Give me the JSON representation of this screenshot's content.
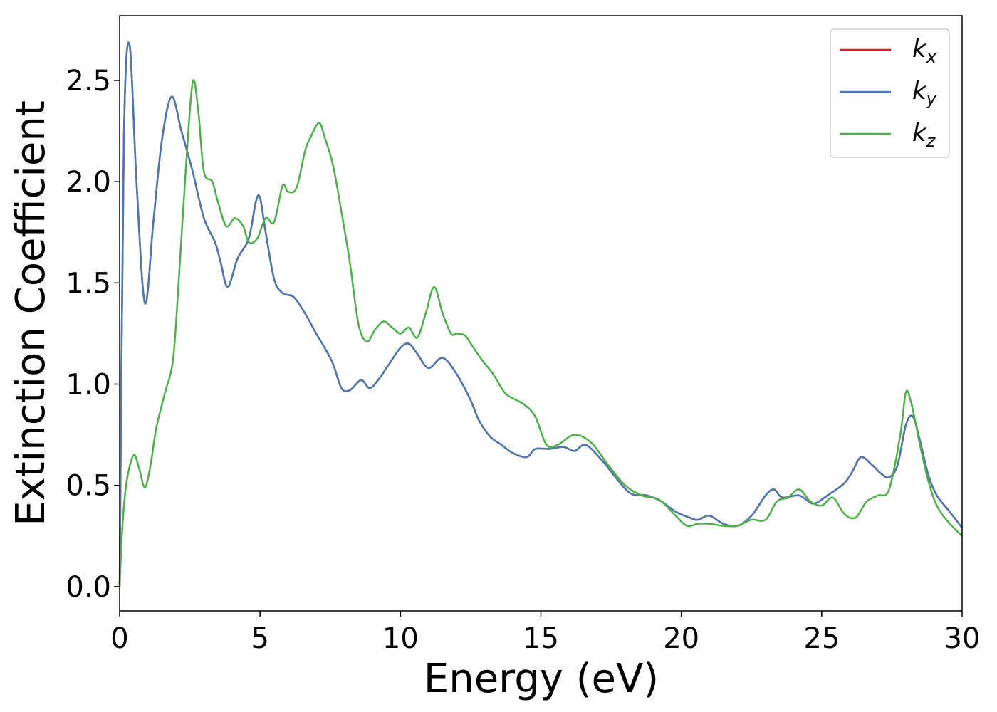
{
  "chart_data": {
    "type": "line",
    "title": "",
    "xlabel": "Energy (eV)",
    "ylabel": "Extinction Coefficient",
    "xlim": [
      0,
      30
    ],
    "ylim": [
      -0.12,
      2.82
    ],
    "xticks": [
      0,
      5,
      10,
      15,
      20,
      25,
      30
    ],
    "xtick_labels": [
      "0",
      "5",
      "10",
      "15",
      "20",
      "25",
      "30"
    ],
    "yticks": [
      0.0,
      0.5,
      1.0,
      1.5,
      2.0,
      2.5
    ],
    "ytick_labels": [
      "0.0",
      "0.5",
      "1.0",
      "1.5",
      "2.0",
      "2.5"
    ],
    "grid": false,
    "legend_position": "top-right",
    "series": [
      {
        "name": "k",
        "subscript": "x",
        "color": "#e41a1c",
        "x": [
          0,
          0.15,
          0.35,
          0.6,
          0.9,
          1.2,
          1.5,
          1.85,
          2.2,
          2.6,
          3.0,
          3.4,
          3.6,
          3.85,
          4.2,
          4.6,
          4.85,
          5.0,
          5.2,
          5.5,
          5.8,
          6.2,
          6.6,
          7.0,
          7.3,
          7.6,
          7.9,
          8.2,
          8.6,
          8.9,
          9.2,
          9.6,
          10.0,
          10.3,
          10.6,
          11.0,
          11.5,
          12.0,
          12.5,
          12.8,
          13.2,
          13.6,
          14.0,
          14.5,
          14.8,
          15.3,
          15.8,
          16.2,
          16.6,
          17.2,
          17.6,
          18.2,
          18.8,
          19.3,
          19.8,
          20.3,
          20.6,
          21.0,
          21.5,
          22.0,
          22.5,
          23.0,
          23.3,
          23.6,
          24.2,
          24.7,
          25.2,
          25.8,
          26.1,
          26.4,
          26.8,
          27.1,
          27.4,
          27.7,
          28.0,
          28.25,
          28.5,
          28.8,
          29.1,
          29.5,
          30.0
        ],
        "y": [
          0.0,
          2.2,
          2.68,
          2.0,
          1.4,
          1.8,
          2.2,
          2.42,
          2.25,
          2.05,
          1.82,
          1.7,
          1.6,
          1.48,
          1.62,
          1.72,
          1.9,
          1.92,
          1.75,
          1.52,
          1.45,
          1.43,
          1.35,
          1.25,
          1.18,
          1.1,
          0.98,
          0.97,
          1.02,
          0.98,
          1.02,
          1.1,
          1.18,
          1.2,
          1.15,
          1.08,
          1.13,
          1.05,
          0.92,
          0.82,
          0.74,
          0.7,
          0.66,
          0.64,
          0.68,
          0.68,
          0.69,
          0.67,
          0.7,
          0.62,
          0.55,
          0.46,
          0.45,
          0.42,
          0.37,
          0.34,
          0.33,
          0.35,
          0.31,
          0.3,
          0.35,
          0.45,
          0.48,
          0.44,
          0.45,
          0.41,
          0.45,
          0.51,
          0.57,
          0.64,
          0.6,
          0.56,
          0.54,
          0.6,
          0.8,
          0.84,
          0.72,
          0.55,
          0.45,
          0.38,
          0.29
        ]
      },
      {
        "name": "k",
        "subscript": "y",
        "color": "#4a78b0",
        "x": [
          0,
          0.15,
          0.35,
          0.6,
          0.9,
          1.2,
          1.5,
          1.85,
          2.2,
          2.6,
          3.0,
          3.4,
          3.6,
          3.85,
          4.2,
          4.6,
          4.85,
          5.0,
          5.2,
          5.5,
          5.8,
          6.2,
          6.6,
          7.0,
          7.3,
          7.6,
          7.9,
          8.2,
          8.6,
          8.9,
          9.2,
          9.6,
          10.0,
          10.3,
          10.6,
          11.0,
          11.5,
          12.0,
          12.5,
          12.8,
          13.2,
          13.6,
          14.0,
          14.5,
          14.8,
          15.3,
          15.8,
          16.2,
          16.6,
          17.2,
          17.6,
          18.2,
          18.8,
          19.3,
          19.8,
          20.3,
          20.6,
          21.0,
          21.5,
          22.0,
          22.5,
          23.0,
          23.3,
          23.6,
          24.2,
          24.7,
          25.2,
          25.8,
          26.1,
          26.4,
          26.8,
          27.1,
          27.4,
          27.7,
          28.0,
          28.25,
          28.5,
          28.8,
          29.1,
          29.5,
          30.0
        ],
        "y": [
          0.0,
          2.2,
          2.68,
          2.0,
          1.4,
          1.8,
          2.2,
          2.42,
          2.25,
          2.05,
          1.82,
          1.7,
          1.6,
          1.48,
          1.62,
          1.72,
          1.9,
          1.92,
          1.75,
          1.52,
          1.45,
          1.43,
          1.35,
          1.25,
          1.18,
          1.1,
          0.98,
          0.97,
          1.02,
          0.98,
          1.02,
          1.1,
          1.18,
          1.2,
          1.15,
          1.08,
          1.13,
          1.05,
          0.92,
          0.82,
          0.74,
          0.7,
          0.66,
          0.64,
          0.68,
          0.68,
          0.69,
          0.67,
          0.7,
          0.62,
          0.55,
          0.46,
          0.45,
          0.42,
          0.37,
          0.34,
          0.33,
          0.35,
          0.31,
          0.3,
          0.35,
          0.45,
          0.48,
          0.44,
          0.45,
          0.41,
          0.45,
          0.51,
          0.57,
          0.64,
          0.6,
          0.56,
          0.54,
          0.6,
          0.8,
          0.84,
          0.72,
          0.55,
          0.45,
          0.38,
          0.29
        ]
      },
      {
        "name": "k",
        "subscript": "z",
        "color": "#4daf4a",
        "x": [
          0,
          0.1,
          0.25,
          0.5,
          0.7,
          0.9,
          1.1,
          1.3,
          1.6,
          1.9,
          2.1,
          2.35,
          2.6,
          2.8,
          3.0,
          3.3,
          3.5,
          3.8,
          4.1,
          4.4,
          4.6,
          4.9,
          5.2,
          5.5,
          5.8,
          6.0,
          6.3,
          6.6,
          6.8,
          7.1,
          7.3,
          7.6,
          7.9,
          8.2,
          8.5,
          8.8,
          9.1,
          9.4,
          9.7,
          10.0,
          10.3,
          10.6,
          10.9,
          11.2,
          11.5,
          11.8,
          12.0,
          12.3,
          12.6,
          12.9,
          13.3,
          13.7,
          14.0,
          14.4,
          14.8,
          15.2,
          15.6,
          16.2,
          16.8,
          17.4,
          18.0,
          18.6,
          19.2,
          19.8,
          20.2,
          20.6,
          21.0,
          21.5,
          22.0,
          22.5,
          23.0,
          23.4,
          23.8,
          24.2,
          24.6,
          25.0,
          25.4,
          25.8,
          26.2,
          26.6,
          27.0,
          27.4,
          27.8,
          28.0,
          28.2,
          28.5,
          28.8,
          29.1,
          29.5,
          30.0
        ],
        "y": [
          0.0,
          0.3,
          0.52,
          0.65,
          0.58,
          0.49,
          0.6,
          0.78,
          0.95,
          1.12,
          1.5,
          2.05,
          2.49,
          2.35,
          2.05,
          2.0,
          1.9,
          1.78,
          1.82,
          1.78,
          1.7,
          1.72,
          1.82,
          1.8,
          1.98,
          1.95,
          1.97,
          2.15,
          2.22,
          2.29,
          2.22,
          2.08,
          1.85,
          1.6,
          1.3,
          1.21,
          1.27,
          1.31,
          1.28,
          1.25,
          1.28,
          1.23,
          1.35,
          1.48,
          1.35,
          1.25,
          1.25,
          1.24,
          1.18,
          1.12,
          1.05,
          0.96,
          0.93,
          0.9,
          0.84,
          0.7,
          0.7,
          0.75,
          0.71,
          0.6,
          0.5,
          0.45,
          0.43,
          0.35,
          0.3,
          0.31,
          0.31,
          0.3,
          0.3,
          0.33,
          0.33,
          0.42,
          0.44,
          0.48,
          0.42,
          0.4,
          0.44,
          0.36,
          0.34,
          0.42,
          0.45,
          0.48,
          0.75,
          0.96,
          0.9,
          0.7,
          0.52,
          0.4,
          0.32,
          0.25
        ]
      }
    ]
  }
}
